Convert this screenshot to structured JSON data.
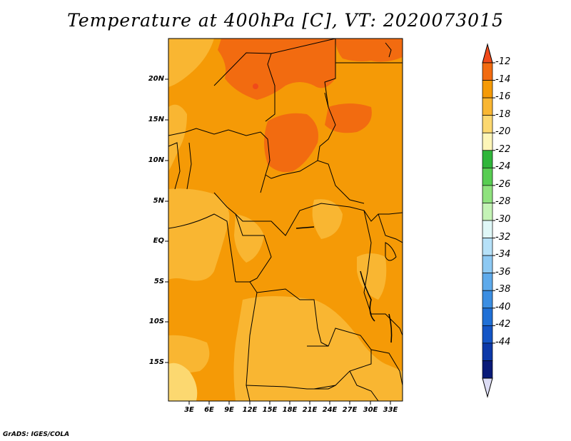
{
  "title": "Temperature at 400hPa [C], VT: 2020073015",
  "lat_ticks": [
    "20N",
    "15N",
    "10N",
    "5N",
    "EQ",
    "5S",
    "10S",
    "15S"
  ],
  "lon_ticks": [
    "3E",
    "6E",
    "9E",
    "12E",
    "15E",
    "18E",
    "21E",
    "24E",
    "27E",
    "30E",
    "33E"
  ],
  "colorbar": {
    "labels": [
      "-12",
      "-14",
      "-16",
      "-18",
      "-20",
      "-22",
      "-24",
      "-26",
      "-28",
      "-30",
      "-32",
      "-34",
      "-36",
      "-38",
      "-40",
      "-42",
      "-44"
    ],
    "colors": [
      "#f04a1a",
      "#f26b10",
      "#f59a06",
      "#f9b632",
      "#fcd870",
      "#fdf5b8",
      "#2fb53a",
      "#58cd52",
      "#8fe27e",
      "#c4f3b6",
      "#dff7f7",
      "#b6e1f8",
      "#8dc9f3",
      "#5eaaeb",
      "#3b8ee2",
      "#2070d6",
      "#1455c6",
      "#0c38a8",
      "#091a78",
      "#dcdcf4"
    ]
  },
  "credit": "GrADS: IGES/COLA"
}
